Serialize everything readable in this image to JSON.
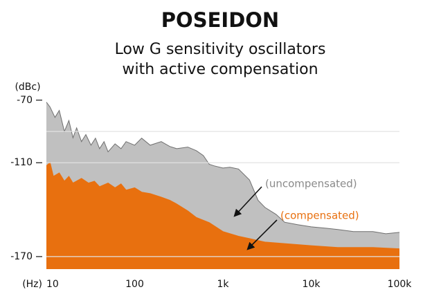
{
  "chart_data": {
    "type": "area",
    "title": "POSEIDON",
    "subtitle": [
      "Low G sensitivity oscillators",
      "with active compensation"
    ],
    "x_label": "(Hz)",
    "y_label": "(dBc)",
    "xscale": "log",
    "xlim": [
      10,
      100000
    ],
    "xticks": [
      10,
      100,
      {
        "value": 1000,
        "label": "1k"
      },
      {
        "value": 10000,
        "label": "10k"
      },
      {
        "value": 100000,
        "label": "100k"
      }
    ],
    "ylim": [
      -178,
      -67
    ],
    "yticks": [
      -70,
      -110,
      -170
    ],
    "ygrid": [
      -90,
      -110,
      -170
    ],
    "series": [
      {
        "name": "uncompensated",
        "color": "#c0c0c0",
        "edge": "#6e6e6e",
        "x": [
          10,
          11,
          12.5,
          14,
          16,
          18,
          20,
          22,
          25,
          28,
          32,
          36,
          40,
          45,
          50,
          60,
          70,
          80,
          100,
          120,
          150,
          200,
          250,
          300,
          400,
          500,
          600,
          700,
          800,
          1000,
          1200,
          1500,
          2000,
          2500,
          3000,
          4000,
          5000,
          7000,
          10000,
          15000,
          20000,
          30000,
          50000,
          70000,
          100000
        ],
        "values": [
          -71.3,
          -74.4,
          -81,
          -76.6,
          -90,
          -83,
          -94,
          -87.7,
          -96.5,
          -92,
          -98.8,
          -94.3,
          -101,
          -96.5,
          -103,
          -97.9,
          -101,
          -96.5,
          -98.8,
          -94.3,
          -98.8,
          -96.5,
          -99.6,
          -101,
          -100,
          -102.3,
          -105.4,
          -111,
          -112,
          -113.4,
          -112.9,
          -114,
          -121,
          -134,
          -138.6,
          -143,
          -148,
          -149.6,
          -151,
          -151.9,
          -152.7,
          -154,
          -154,
          -155.4,
          -154.5
        ]
      },
      {
        "name": "compensated",
        "color": "#e8700f",
        "edge": "#e8700f",
        "x": [
          10,
          11,
          12,
          14,
          16,
          18,
          20,
          25,
          30,
          35,
          40,
          50,
          60,
          70,
          80,
          100,
          120,
          150,
          200,
          250,
          300,
          400,
          500,
          700,
          1000,
          1500,
          2000,
          3000,
          5000,
          10000,
          20000,
          50000,
          100000
        ],
        "values": [
          -112,
          -109.8,
          -118.7,
          -116.5,
          -121.8,
          -118.7,
          -123,
          -120,
          -123,
          -121.8,
          -125.3,
          -123,
          -126,
          -123.5,
          -127.5,
          -126,
          -128.8,
          -129.7,
          -132,
          -134,
          -136.4,
          -140.8,
          -145,
          -148.3,
          -154,
          -157,
          -158.5,
          -160.7,
          -161.7,
          -163,
          -164.2,
          -164.2,
          -165
        ]
      }
    ],
    "annotations": [
      {
        "text": "(uncompensated)",
        "color": "#8a8a8a"
      },
      {
        "text": "(compensated)",
        "color": "#e8700f"
      }
    ]
  }
}
